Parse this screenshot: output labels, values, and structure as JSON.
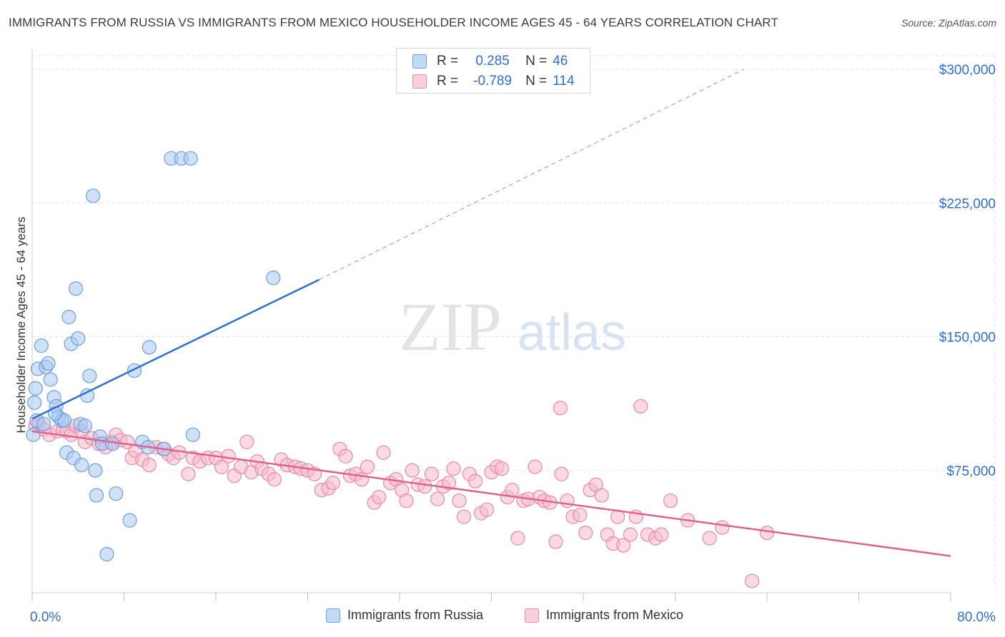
{
  "title": "IMMIGRANTS FROM RUSSIA VS IMMIGRANTS FROM MEXICO HOUSEHOLDER INCOME AGES 45 - 64 YEARS CORRELATION CHART",
  "source": "Source: ZipAtlas.com",
  "watermark": {
    "zip": "ZIP",
    "atlas": "atlas"
  },
  "legend": {
    "russia": {
      "r_key": "R =",
      "r_val": "0.285",
      "n_key": "N =",
      "n_val": "46"
    },
    "mexico": {
      "r_key": "R =",
      "r_val": "-0.789",
      "n_key": "N =",
      "n_val": "114"
    }
  },
  "colors": {
    "russia_fill": "#a9c8f0",
    "russia_stroke": "#6b9fdf",
    "russia_line": "#2f6fcf",
    "mexico_fill": "#f6b9cb",
    "mexico_stroke": "#e88aa8",
    "mexico_line": "#e0628f",
    "grid": "#e2e2e2",
    "axis_text": "#2f6fcf"
  },
  "chart_data": {
    "type": "scatter",
    "title": "IMMIGRANTS FROM RUSSIA VS IMMIGRANTS FROM MEXICO HOUSEHOLDER INCOME AGES 45 - 64 YEARS CORRELATION CHART",
    "xlabel": "",
    "ylabel": "Householder Income Ages 45 - 64 years",
    "xlim": [
      0,
      80
    ],
    "ylim": [
      0,
      310000
    ],
    "x_tick_labels": [
      "0.0%",
      "80.0%"
    ],
    "y_ticks": [
      75000,
      150000,
      225000,
      300000
    ],
    "y_tick_labels": [
      "$75,000",
      "$150,000",
      "$225,000",
      "$300,000"
    ],
    "grid": true,
    "legend_position": "top-center",
    "series": [
      {
        "name": "Immigrants from Russia",
        "r": 0.285,
        "n": 46,
        "trend": {
          "x": [
            0,
            25
          ],
          "y": [
            104000,
            182000
          ],
          "dashed_to": [
            62,
            300000
          ]
        },
        "points": [
          [
            0.2,
            113000
          ],
          [
            0.3,
            121000
          ],
          [
            0.5,
            132000
          ],
          [
            0.8,
            145000
          ],
          [
            1.2,
            133000
          ],
          [
            1.4,
            135000
          ],
          [
            1.6,
            126000
          ],
          [
            1.9,
            116000
          ],
          [
            2.1,
            111000
          ],
          [
            2.3,
            105000
          ],
          [
            2.6,
            103000
          ],
          [
            2.8,
            103000
          ],
          [
            3.0,
            85000
          ],
          [
            3.2,
            161000
          ],
          [
            3.4,
            146000
          ],
          [
            3.6,
            82000
          ],
          [
            3.8,
            177000
          ],
          [
            4.0,
            149000
          ],
          [
            4.2,
            101000
          ],
          [
            4.3,
            78000
          ],
          [
            4.6,
            100000
          ],
          [
            4.8,
            117000
          ],
          [
            5.0,
            128000
          ],
          [
            5.3,
            229000
          ],
          [
            5.5,
            75000
          ],
          [
            5.6,
            61000
          ],
          [
            5.9,
            94000
          ],
          [
            6.1,
            90000
          ],
          [
            6.5,
            28000
          ],
          [
            7.0,
            90000
          ],
          [
            7.3,
            62000
          ],
          [
            8.5,
            47000
          ],
          [
            8.9,
            131000
          ],
          [
            9.6,
            91000
          ],
          [
            10.1,
            88000
          ],
          [
            10.2,
            144000
          ],
          [
            11.5,
            87000
          ],
          [
            12.1,
            250000
          ],
          [
            13.0,
            250000
          ],
          [
            13.8,
            250000
          ],
          [
            14.0,
            95000
          ],
          [
            21.0,
            183000
          ],
          [
            0.1,
            95000
          ],
          [
            0.4,
            103000
          ],
          [
            1.0,
            101000
          ],
          [
            2.0,
            107000
          ]
        ]
      },
      {
        "name": "Immigrants from Mexico",
        "r": -0.789,
        "n": 114,
        "trend": {
          "x": [
            0,
            80
          ],
          "y": [
            97000,
            27000
          ]
        },
        "points": [
          [
            0.3,
            100000
          ],
          [
            0.6,
            101000
          ],
          [
            1.0,
            98000
          ],
          [
            1.5,
            95000
          ],
          [
            2.2,
            97000
          ],
          [
            2.7,
            98000
          ],
          [
            3.0,
            97000
          ],
          [
            3.4,
            95000
          ],
          [
            3.8,
            100000
          ],
          [
            4.3,
            97000
          ],
          [
            4.6,
            91000
          ],
          [
            5.2,
            93000
          ],
          [
            5.8,
            90000
          ],
          [
            6.4,
            88000
          ],
          [
            6.9,
            91000
          ],
          [
            7.3,
            95000
          ],
          [
            7.7,
            92000
          ],
          [
            8.3,
            91000
          ],
          [
            8.7,
            82000
          ],
          [
            9.0,
            86000
          ],
          [
            9.6,
            81000
          ],
          [
            10.2,
            78000
          ],
          [
            10.8,
            88000
          ],
          [
            11.4,
            87000
          ],
          [
            11.9,
            84000
          ],
          [
            12.3,
            82000
          ],
          [
            12.8,
            85000
          ],
          [
            13.6,
            73000
          ],
          [
            14.0,
            82000
          ],
          [
            14.6,
            80000
          ],
          [
            15.3,
            82000
          ],
          [
            16.0,
            82000
          ],
          [
            16.5,
            77000
          ],
          [
            17.1,
            83000
          ],
          [
            17.6,
            72000
          ],
          [
            18.2,
            77000
          ],
          [
            18.7,
            91000
          ],
          [
            19.1,
            74000
          ],
          [
            19.6,
            80000
          ],
          [
            20.0,
            76000
          ],
          [
            20.6,
            73000
          ],
          [
            21.1,
            70000
          ],
          [
            21.7,
            81000
          ],
          [
            22.2,
            78000
          ],
          [
            22.9,
            77000
          ],
          [
            23.4,
            76000
          ],
          [
            24.0,
            75000
          ],
          [
            24.6,
            73000
          ],
          [
            25.2,
            64000
          ],
          [
            25.8,
            65000
          ],
          [
            26.2,
            68000
          ],
          [
            26.8,
            87000
          ],
          [
            27.3,
            83000
          ],
          [
            27.7,
            72000
          ],
          [
            28.2,
            73000
          ],
          [
            28.7,
            70000
          ],
          [
            29.2,
            77000
          ],
          [
            29.8,
            57000
          ],
          [
            30.2,
            60000
          ],
          [
            30.6,
            85000
          ],
          [
            31.2,
            68000
          ],
          [
            31.7,
            70000
          ],
          [
            32.2,
            64000
          ],
          [
            32.6,
            58000
          ],
          [
            33.1,
            75000
          ],
          [
            33.6,
            67000
          ],
          [
            34.2,
            66000
          ],
          [
            34.8,
            73000
          ],
          [
            35.3,
            59000
          ],
          [
            35.8,
            66000
          ],
          [
            36.3,
            68000
          ],
          [
            36.7,
            76000
          ],
          [
            37.2,
            58000
          ],
          [
            37.6,
            49000
          ],
          [
            38.1,
            73000
          ],
          [
            38.6,
            69000
          ],
          [
            39.1,
            51000
          ],
          [
            39.6,
            53000
          ],
          [
            40.0,
            74000
          ],
          [
            40.5,
            77000
          ],
          [
            40.9,
            76000
          ],
          [
            41.4,
            60000
          ],
          [
            41.8,
            64000
          ],
          [
            42.3,
            37000
          ],
          [
            42.8,
            58000
          ],
          [
            43.2,
            59000
          ],
          [
            43.8,
            77000
          ],
          [
            44.2,
            60000
          ],
          [
            44.6,
            58000
          ],
          [
            45.1,
            57000
          ],
          [
            45.6,
            35000
          ],
          [
            46.1,
            73000
          ],
          [
            46.6,
            58000
          ],
          [
            47.1,
            49000
          ],
          [
            47.7,
            50000
          ],
          [
            48.2,
            40000
          ],
          [
            48.6,
            64000
          ],
          [
            49.1,
            67000
          ],
          [
            49.6,
            61000
          ],
          [
            50.1,
            39000
          ],
          [
            50.6,
            34000
          ],
          [
            51.0,
            49000
          ],
          [
            51.5,
            33000
          ],
          [
            52.1,
            39000
          ],
          [
            52.6,
            49000
          ],
          [
            53.0,
            111000
          ],
          [
            53.6,
            39000
          ],
          [
            54.3,
            37000
          ],
          [
            54.8,
            39000
          ],
          [
            55.6,
            58000
          ],
          [
            57.1,
            47000
          ],
          [
            59.0,
            37000
          ],
          [
            60.1,
            43000
          ],
          [
            62.7,
            13000
          ],
          [
            64.0,
            40000
          ],
          [
            46.0,
            110000
          ]
        ]
      }
    ]
  },
  "bottom_legend": {
    "russia": "Immigrants from Russia",
    "mexico": "Immigrants from Mexico"
  }
}
